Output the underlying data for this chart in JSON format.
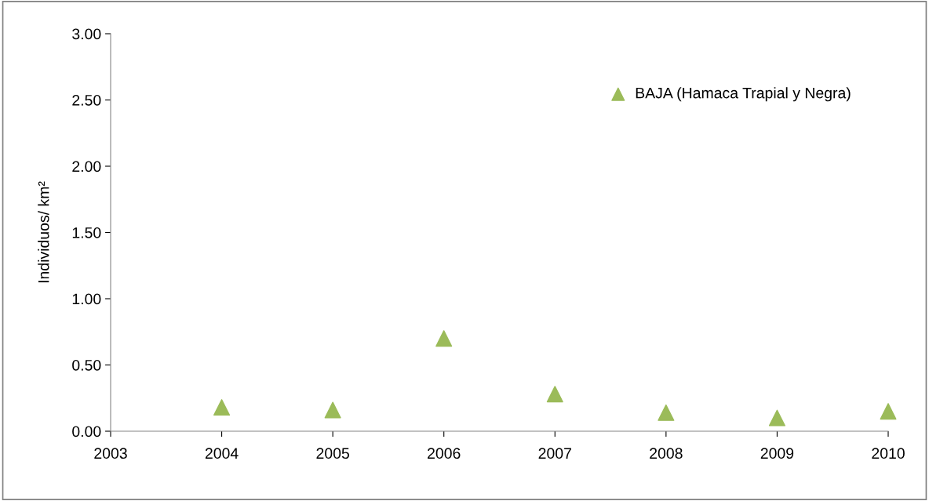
{
  "chart_data": {
    "type": "scatter",
    "ylabel": "Individuos/ km²",
    "x": [
      2004,
      2005,
      2006,
      2007,
      2008,
      2009,
      2010
    ],
    "series": [
      {
        "name": "BAJA (Hamaca Trapial y Negra)",
        "color": "#9bbb59",
        "values": [
          0.18,
          0.16,
          0.7,
          0.28,
          0.14,
          0.1,
          0.15
        ]
      }
    ],
    "xlim": [
      2003,
      2010
    ],
    "xticks": [
      2003,
      2004,
      2005,
      2006,
      2007,
      2008,
      2009,
      2010
    ],
    "ylim": [
      0,
      3
    ],
    "yticks": [
      {
        "value": 0,
        "label": "0.00"
      },
      {
        "value": 0.5,
        "label": "0.50"
      },
      {
        "value": 1,
        "label": "1.00"
      },
      {
        "value": 1.5,
        "label": "1.50"
      },
      {
        "value": 2,
        "label": "2.00"
      },
      {
        "value": 2.5,
        "label": "2.50"
      },
      {
        "value": 3,
        "label": "3.00"
      }
    ],
    "marker": "triangle",
    "grid": false,
    "legend": "top right"
  }
}
